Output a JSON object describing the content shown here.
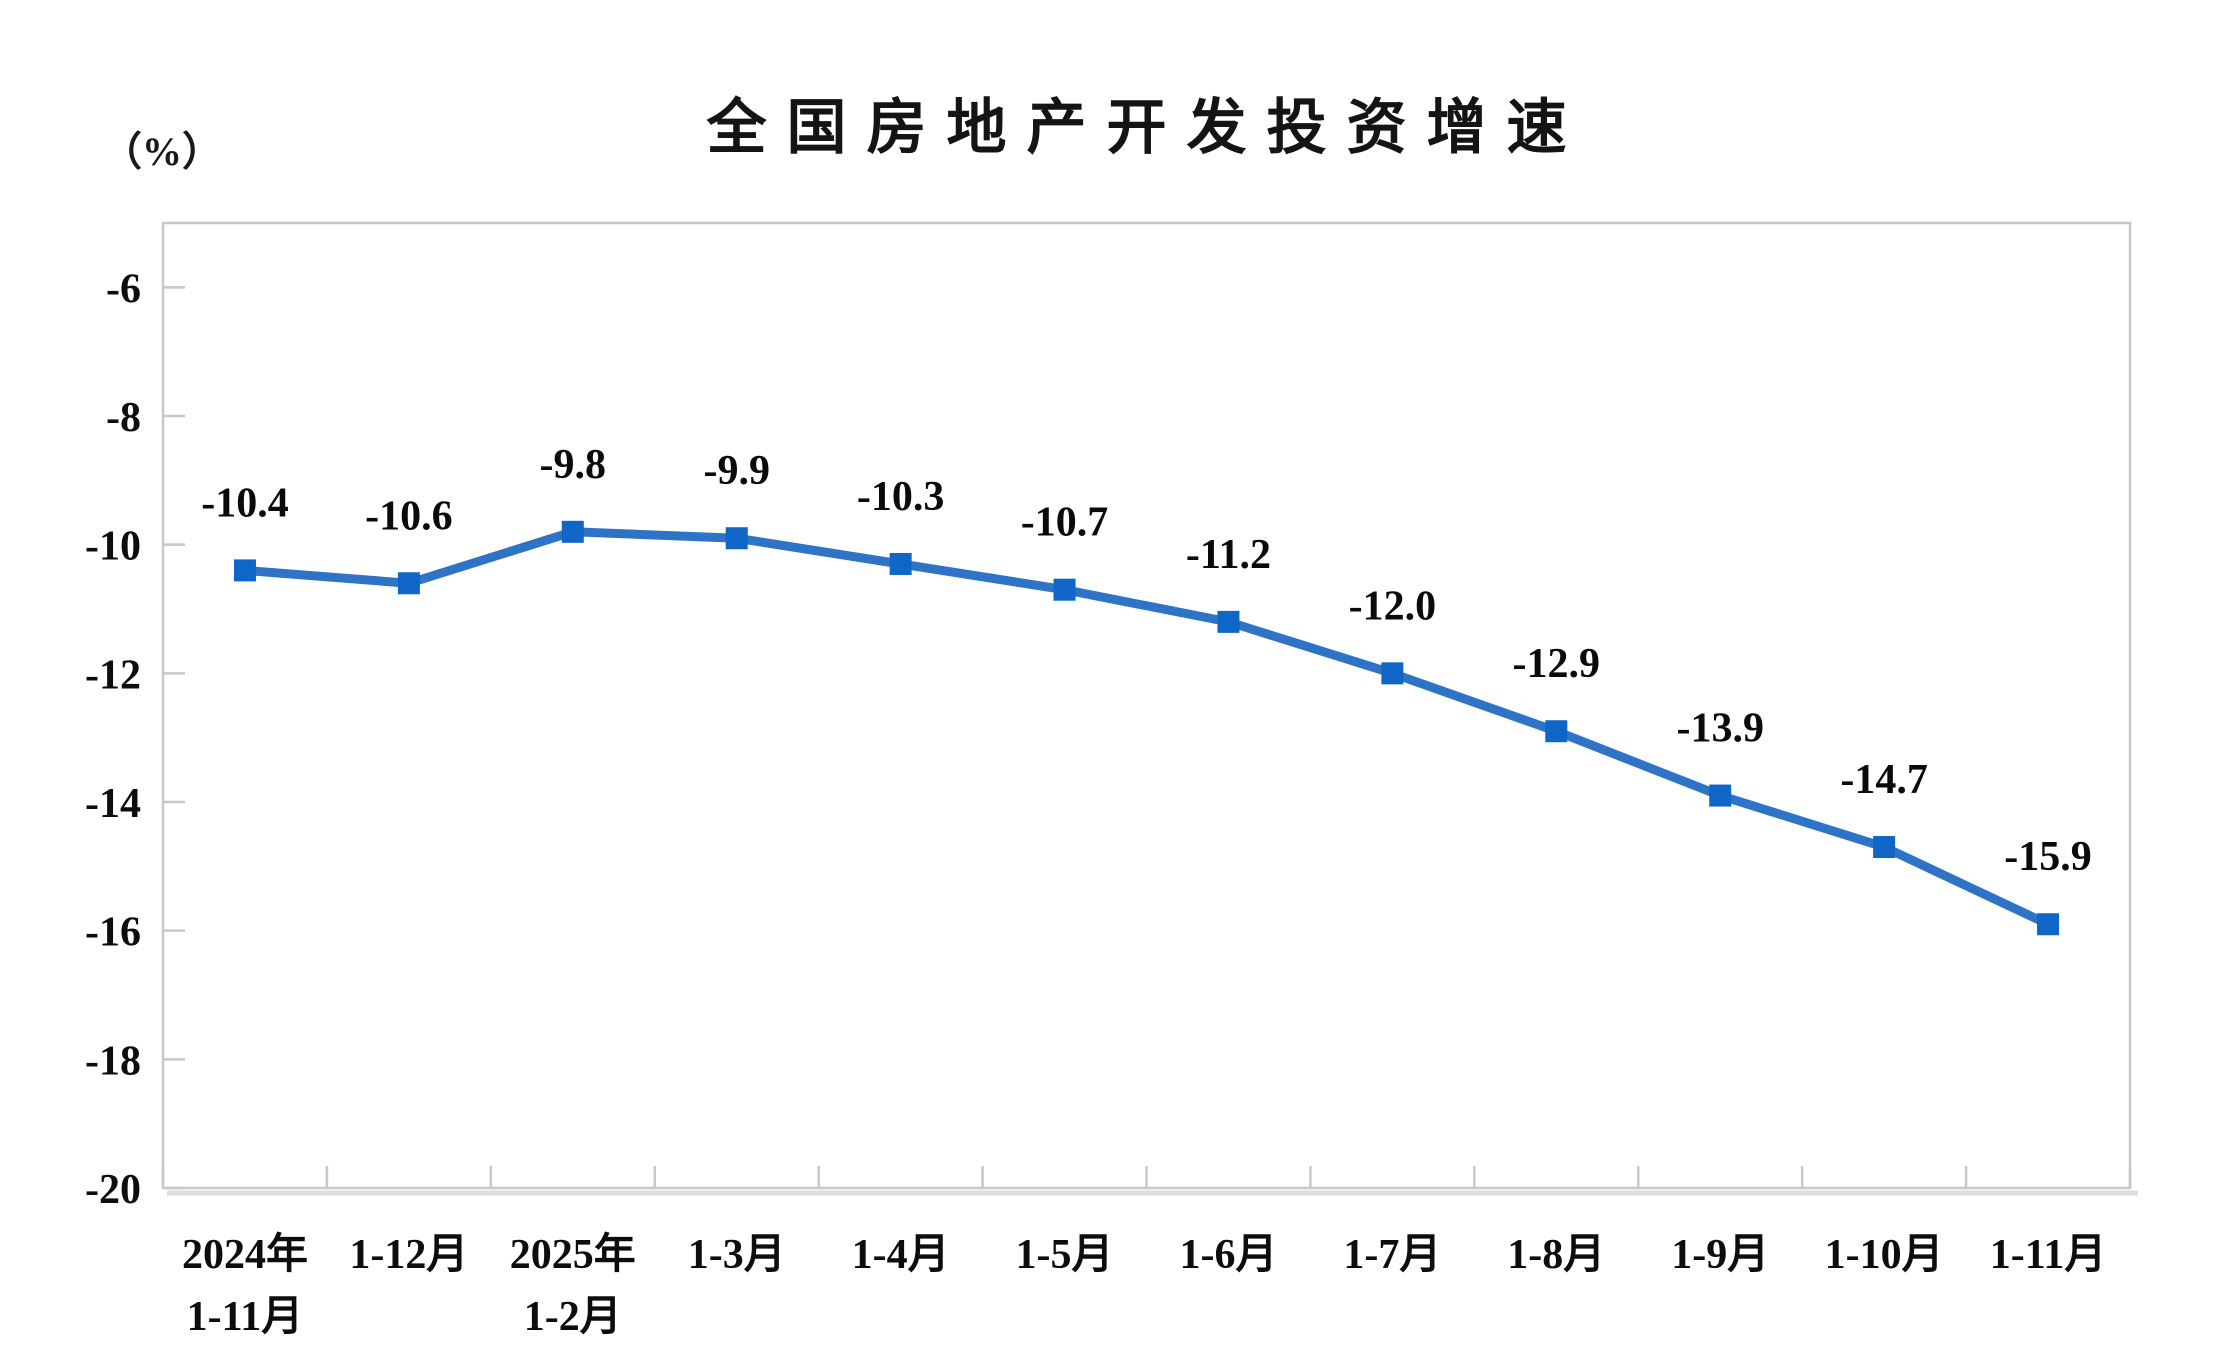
{
  "chart_data": {
    "type": "line",
    "title": "全国房地产开发投资增速",
    "y_unit_label": "（%）",
    "xlabel": "",
    "ylabel": "（%）",
    "categories": [
      [
        "2024年",
        "1-11月"
      ],
      [
        "1-12月"
      ],
      [
        "2025年",
        "1-2月"
      ],
      [
        "1-3月"
      ],
      [
        "1-4月"
      ],
      [
        "1-5月"
      ],
      [
        "1-6月"
      ],
      [
        "1-7月"
      ],
      [
        "1-8月"
      ],
      [
        "1-9月"
      ],
      [
        "1-10月"
      ],
      [
        "1-11月"
      ]
    ],
    "values": [
      -10.4,
      -10.6,
      -9.8,
      -9.9,
      -10.3,
      -10.7,
      -11.2,
      -12.0,
      -12.9,
      -13.9,
      -14.7,
      -15.9
    ],
    "value_labels": [
      "-10.4",
      "-10.6",
      "-9.8",
      "-9.9",
      "-10.3",
      "-10.7",
      "-11.2",
      "-12.0",
      "-12.9",
      "-13.9",
      "-14.7",
      "-15.9"
    ],
    "y_ticks": [
      -6,
      -8,
      -10,
      -12,
      -14,
      -16,
      -18,
      -20
    ],
    "y_tick_labels": [
      "-6",
      "-8",
      "-10",
      "-12",
      "-14",
      "-16",
      "-18",
      "-20"
    ],
    "ylim": [
      -20,
      -5
    ],
    "grid": false,
    "legend": "none",
    "marker_shape": "square",
    "colors": {
      "line": "#2E73C5",
      "marker": "#0F66C6",
      "axis": "#C8C8C8",
      "axis_shadow": "#DCDCDC",
      "text": "#0D0D0D",
      "background": "#FFFFFF"
    }
  }
}
